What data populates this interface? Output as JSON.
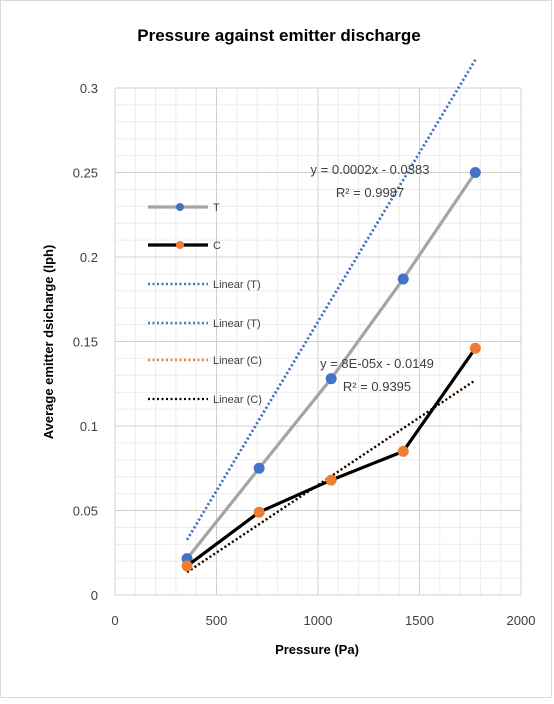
{
  "chart_data": {
    "type": "line",
    "title": "Pressure against emitter discharge",
    "xlabel": "Pressure (Pa)",
    "ylabel": "Average emitter dsicharge (lph)",
    "xlim": [
      0,
      2000
    ],
    "ylim": [
      0,
      0.3
    ],
    "xticks": [
      "0",
      "500",
      "1000",
      "1500",
      "2000"
    ],
    "yticks": [
      "0",
      "0.05",
      "0.1",
      "0.15",
      "0.2",
      "0.25",
      "0.3"
    ],
    "grid": true,
    "legend_position": "left",
    "series": [
      {
        "name": "T",
        "color": "#a5a5a5",
        "marker_color": "#4472c4",
        "x": [
          355,
          710,
          1065,
          1420,
          1775
        ],
        "y": [
          0.0215,
          0.075,
          0.128,
          0.187,
          0.25
        ]
      },
      {
        "name": "C",
        "color": "#000000",
        "marker_color": "#ed7d31",
        "x": [
          355,
          710,
          1065,
          1420,
          1775
        ],
        "y": [
          0.0172,
          0.049,
          0.068,
          0.085,
          0.146
        ]
      }
    ],
    "trendlines": [
      {
        "name": "Linear (T)",
        "color": "#4472c4",
        "slope": 0.0002,
        "intercept": -0.0383,
        "x_range": [
          355,
          1775
        ]
      },
      {
        "name": "Linear (T)",
        "color": "#4472c4",
        "slope": 0.0002,
        "intercept": -0.0383,
        "x_range": [
          355,
          1775
        ]
      },
      {
        "name": "Linear (C)",
        "color": "#ed7d31",
        "slope": 8e-05,
        "intercept": -0.0149,
        "x_range": [
          355,
          1775
        ]
      },
      {
        "name": "Linear (C)",
        "color": "#000000",
        "slope": 8e-05,
        "intercept": -0.0149,
        "x_range": [
          355,
          1775
        ]
      }
    ],
    "annotations": [
      {
        "equation": "y = 0.0002x - 0.0383",
        "r2": "R² = 0.9987"
      },
      {
        "equation": "y = 8E-05x - 0.0149",
        "r2": "R² = 0.9395"
      }
    ]
  }
}
